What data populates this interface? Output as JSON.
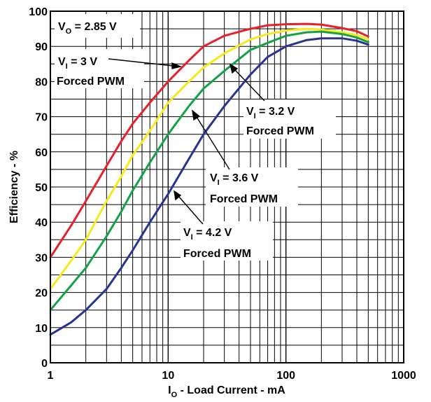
{
  "chart_data": {
    "type": "line",
    "xlabel_prefix": "I",
    "xlabel_sub": "O",
    "xlabel_rest": " - Load Current - mA",
    "ylabel": "Efficiency - %",
    "xscale": "log",
    "xlim": [
      1,
      1000
    ],
    "ylim": [
      0,
      100
    ],
    "grid": true,
    "x_tick_labels": [
      "1",
      "10",
      "100",
      "1000"
    ],
    "y_tick_labels": [
      "0",
      "10",
      "20",
      "30",
      "40",
      "50",
      "60",
      "70",
      "80",
      "90",
      "100"
    ],
    "title_box": {
      "main": "V",
      "sub": "O",
      "rest": " = 2.85 V"
    },
    "series": [
      {
        "color": "#e8202a",
        "x": [
          1,
          1.5,
          2,
          3,
          4,
          5,
          7,
          10,
          15,
          20,
          30,
          50,
          70,
          100,
          150,
          200,
          300,
          400,
          500
        ],
        "y": [
          30,
          39,
          46,
          56,
          63,
          68,
          74,
          80,
          86,
          90,
          93,
          95,
          96,
          96.3,
          96.4,
          96.2,
          95.2,
          94.3,
          92.8
        ]
      },
      {
        "color": "#f7e91a",
        "x": [
          1,
          1.5,
          2,
          3,
          4,
          5,
          7,
          10,
          15,
          20,
          30,
          50,
          70,
          100,
          150,
          200,
          300,
          400,
          500
        ],
        "y": [
          21,
          29,
          35,
          46,
          53,
          59,
          66,
          74,
          80,
          84,
          88,
          92,
          93.5,
          94.5,
          95,
          94.8,
          94,
          93.2,
          92
        ]
      },
      {
        "color": "#13a248",
        "x": [
          1,
          1.5,
          2,
          3,
          4,
          5,
          7,
          10,
          15,
          20,
          30,
          50,
          70,
          100,
          150,
          200,
          300,
          400,
          500
        ],
        "y": [
          15,
          22,
          27,
          36,
          43,
          49,
          57,
          65,
          73,
          78,
          83,
          89,
          91,
          93,
          94,
          94.2,
          93.5,
          92.5,
          91.2
        ]
      },
      {
        "color": "#2a3490",
        "x": [
          1,
          1.5,
          2,
          3,
          4,
          5,
          7,
          10,
          15,
          20,
          30,
          50,
          70,
          100,
          150,
          200,
          300,
          400,
          500
        ],
        "y": [
          8,
          11.5,
          15,
          21,
          27,
          32,
          40,
          48,
          58,
          65,
          73,
          82,
          87,
          90,
          91.8,
          92.3,
          92.3,
          91.6,
          90.5
        ]
      }
    ],
    "annotations": [
      {
        "line1_main": "V",
        "line1_sub": "I",
        "line1_rest": " = 3 V",
        "line2": "Forced PWM"
      },
      {
        "line1_main": "V",
        "line1_sub": "I",
        "line1_rest": " = 3.2 V",
        "line2": "Forced PWM"
      },
      {
        "line1_main": "V",
        "line1_sub": "I",
        "line1_rest": " = 3.6 V",
        "line2": "Forced PWM"
      },
      {
        "line1_main": "V",
        "line1_sub": "I",
        "line1_rest": " = 4.2 V",
        "line2": "Forced PWM"
      }
    ]
  }
}
